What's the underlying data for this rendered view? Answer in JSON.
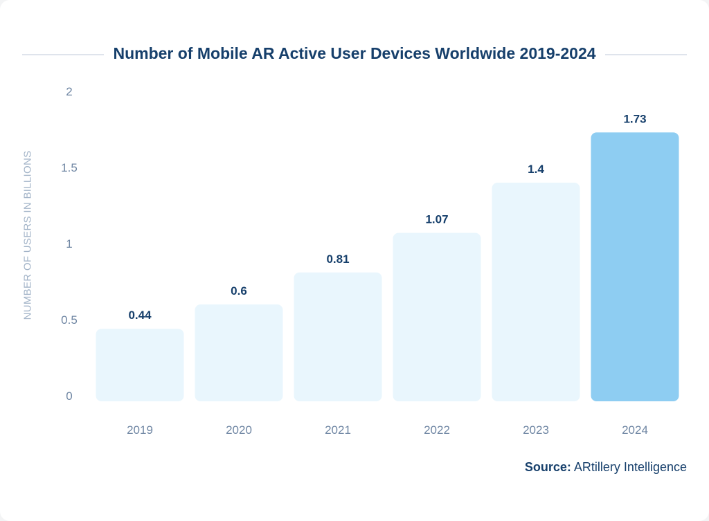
{
  "chart_data": {
    "type": "bar",
    "title": "Number of Mobile AR Active User Devices Worldwide 2019-2024",
    "xlabel": "",
    "ylabel": "NUMBER OF USERS IN BILLIONS",
    "categories": [
      "2019",
      "2020",
      "2021",
      "2022",
      "2023",
      "2024"
    ],
    "values": [
      0.44,
      0.6,
      0.81,
      1.07,
      1.4,
      1.73
    ],
    "data_labels": [
      "0.44",
      "0.6",
      "0.81",
      "1.07",
      "1.4",
      "1.73"
    ],
    "ylim": [
      0,
      2
    ],
    "yticks": [
      "0",
      "0.5",
      "1",
      "1.5",
      "2"
    ],
    "grid": false,
    "colors": {
      "default": "#e9f6fd",
      "highlight": "#8ecdf2",
      "highlight_index": 5
    }
  },
  "source": {
    "label": "Source:",
    "text": "ARtillery Intelligence"
  }
}
